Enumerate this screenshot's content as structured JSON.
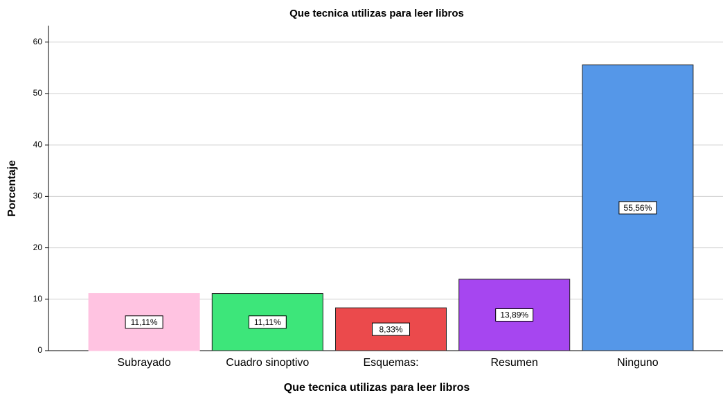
{
  "chart_data": {
    "type": "bar",
    "title": "Que tecnica utilizas para leer libros",
    "x_label": "Que tecnica utilizas para leer libros",
    "y_label": "Porcentaje",
    "categories": [
      "Subrayado",
      "Cuadro sinoptivo",
      "Esquemas:",
      "Resumen",
      "Ninguno"
    ],
    "values": [
      11.11,
      11.11,
      8.33,
      13.89,
      55.56
    ],
    "value_labels": [
      "11,11%",
      "11,11%",
      "8,33%",
      "13,89%",
      "55,56%"
    ],
    "colors": [
      "#ffc3e1",
      "#3de67a",
      "#eb4a4c",
      "#a646f0",
      "#5597e8"
    ],
    "ylim": [
      0,
      63.2
    ],
    "yticks": [
      0,
      10,
      20,
      30,
      40,
      50,
      60
    ],
    "grid": true
  }
}
